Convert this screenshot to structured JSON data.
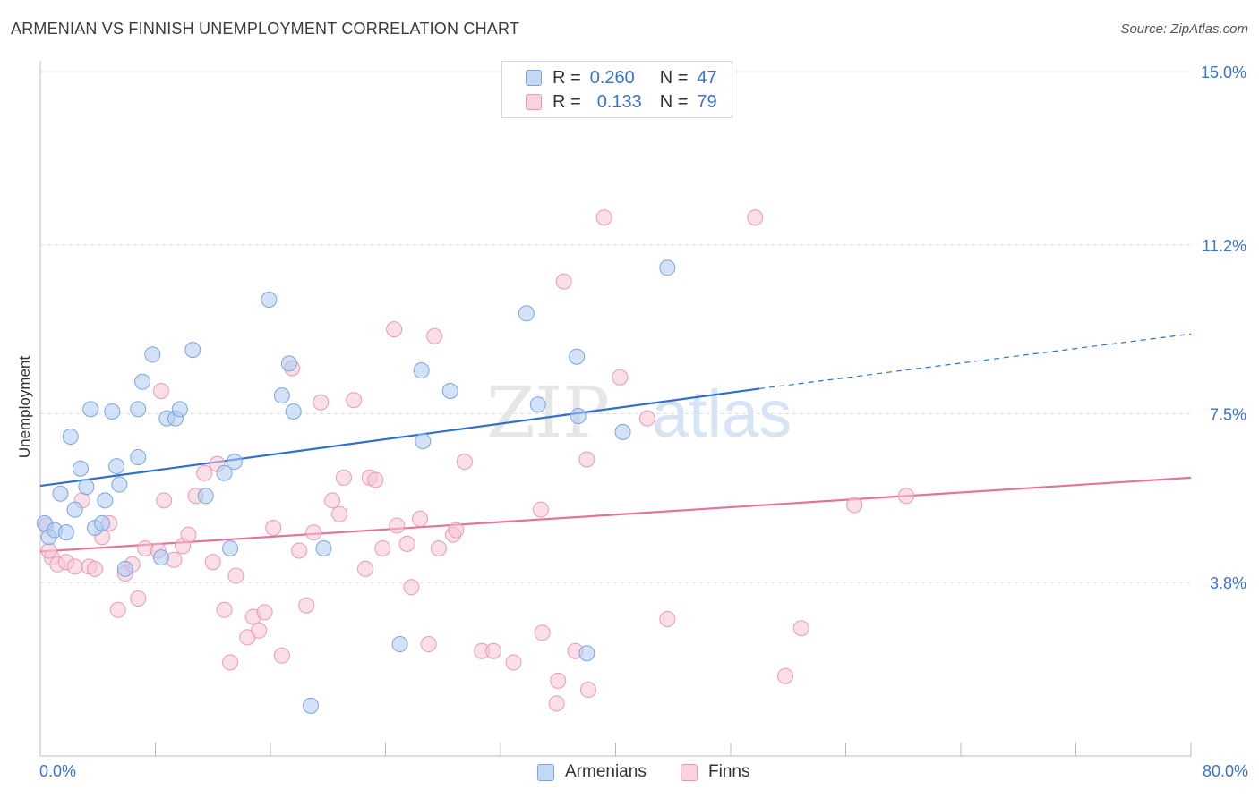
{
  "title": "ARMENIAN VS FINNISH UNEMPLOYMENT CORRELATION CHART",
  "source": "Source: ZipAtlas.com",
  "watermark": {
    "zip": "ZIP",
    "atlas": "atlas"
  },
  "legend_top": {
    "rows": [
      {
        "r_label": "R =",
        "r_value": "0.260",
        "n_label": "N =",
        "n_value": "47"
      },
      {
        "r_label": "R =",
        "r_value": "0.133",
        "n_label": "N =",
        "n_value": "79"
      }
    ]
  },
  "x_axis": {
    "min_label": "0.0%",
    "max_label": "80.0%"
  },
  "chart_data": {
    "type": "scatter",
    "title": "ARMENIAN VS FINNISH UNEMPLOYMENT CORRELATION CHART",
    "xlabel": "",
    "ylabel": "Unemployment",
    "xlim": [
      0,
      80
    ],
    "ylim": [
      0,
      15
    ],
    "x_tick_labels": [
      "0.0%",
      "80.0%"
    ],
    "y_ticks": [
      3.8,
      7.5,
      11.2,
      15.0
    ],
    "y_tick_labels": [
      "3.8%",
      "7.5%",
      "11.2%",
      "15.0%"
    ],
    "grid": true,
    "legend_position": "bottom",
    "colors": {
      "armenians_fill": "#aecbf2",
      "armenians_stroke": "#7aa6e0",
      "armenians_line": "#2f6fd0",
      "finns_fill": "#f7c5d5",
      "finns_stroke": "#ea9ab4",
      "finns_line": "#e5739a",
      "value_blue": "#3a73d0"
    },
    "series": [
      {
        "name": "Armenians",
        "r": 0.26,
        "n": 47,
        "trend": {
          "x0": 0,
          "y0": 5.92,
          "x1": 50,
          "y1": 8.05,
          "dashed_to_x": 80,
          "dashed_to_y": 9.25
        },
        "points": [
          [
            0.3,
            5.1
          ],
          [
            0.6,
            4.8
          ],
          [
            1.0,
            4.95
          ],
          [
            1.4,
            5.75
          ],
          [
            1.8,
            4.9
          ],
          [
            2.1,
            7.0
          ],
          [
            2.4,
            5.4
          ],
          [
            2.8,
            6.3
          ],
          [
            3.2,
            5.9
          ],
          [
            3.5,
            7.6
          ],
          [
            3.8,
            5.0
          ],
          [
            4.3,
            5.1
          ],
          [
            4.5,
            5.6
          ],
          [
            5.0,
            7.55
          ],
          [
            5.3,
            6.35
          ],
          [
            5.5,
            5.95
          ],
          [
            5.9,
            4.1
          ],
          [
            6.8,
            6.55
          ],
          [
            6.8,
            7.6
          ],
          [
            7.1,
            8.2
          ],
          [
            7.8,
            8.8
          ],
          [
            8.4,
            4.35
          ],
          [
            8.8,
            7.4
          ],
          [
            9.4,
            7.4
          ],
          [
            9.7,
            7.6
          ],
          [
            10.6,
            8.9
          ],
          [
            11.5,
            5.7
          ],
          [
            12.8,
            6.2
          ],
          [
            13.2,
            4.55
          ],
          [
            13.5,
            6.45
          ],
          [
            15.9,
            10.0
          ],
          [
            16.8,
            7.9
          ],
          [
            17.3,
            8.6
          ],
          [
            17.6,
            7.55
          ],
          [
            18.8,
            1.1
          ],
          [
            19.7,
            4.55
          ],
          [
            25.0,
            2.45
          ],
          [
            26.5,
            8.45
          ],
          [
            26.6,
            6.9
          ],
          [
            28.5,
            8.0
          ],
          [
            33.8,
            9.7
          ],
          [
            34.6,
            7.7
          ],
          [
            37.3,
            8.75
          ],
          [
            37.4,
            7.45
          ],
          [
            38.0,
            2.25
          ],
          [
            40.5,
            7.1
          ],
          [
            43.6,
            10.7
          ]
        ]
      },
      {
        "name": "Finns",
        "r": 0.133,
        "n": 79,
        "trend": {
          "x0": 0,
          "y0": 4.48,
          "x1": 80,
          "y1": 6.1
        },
        "points": [
          [
            0.4,
            5.05
          ],
          [
            0.8,
            4.35
          ],
          [
            1.2,
            4.2
          ],
          [
            1.8,
            4.25
          ],
          [
            2.4,
            4.15
          ],
          [
            2.9,
            5.6
          ],
          [
            3.4,
            4.15
          ],
          [
            3.8,
            4.1
          ],
          [
            4.3,
            4.8
          ],
          [
            4.8,
            5.1
          ],
          [
            5.4,
            3.2
          ],
          [
            5.9,
            4.0
          ],
          [
            6.4,
            4.2
          ],
          [
            6.8,
            3.45
          ],
          [
            7.3,
            4.55
          ],
          [
            8.2,
            4.5
          ],
          [
            8.4,
            8.0
          ],
          [
            8.6,
            5.6
          ],
          [
            9.3,
            4.3
          ],
          [
            9.9,
            4.6
          ],
          [
            10.3,
            4.85
          ],
          [
            10.8,
            5.7
          ],
          [
            11.4,
            6.2
          ],
          [
            12.0,
            4.25
          ],
          [
            12.3,
            6.4
          ],
          [
            12.8,
            3.2
          ],
          [
            13.2,
            2.05
          ],
          [
            13.6,
            3.95
          ],
          [
            14.4,
            2.6
          ],
          [
            14.8,
            3.05
          ],
          [
            15.2,
            2.75
          ],
          [
            15.6,
            3.15
          ],
          [
            16.2,
            5.0
          ],
          [
            16.8,
            2.2
          ],
          [
            17.5,
            8.5
          ],
          [
            18.0,
            4.5
          ],
          [
            18.5,
            3.3
          ],
          [
            19.0,
            4.9
          ],
          [
            19.5,
            7.75
          ],
          [
            20.3,
            5.6
          ],
          [
            20.8,
            5.3
          ],
          [
            21.1,
            6.1
          ],
          [
            21.8,
            7.8
          ],
          [
            22.6,
            4.1
          ],
          [
            22.9,
            6.1
          ],
          [
            23.3,
            6.05
          ],
          [
            23.8,
            4.55
          ],
          [
            24.6,
            9.35
          ],
          [
            24.8,
            5.05
          ],
          [
            25.5,
            4.65
          ],
          [
            25.8,
            3.7
          ],
          [
            26.4,
            5.2
          ],
          [
            27.0,
            2.45
          ],
          [
            27.4,
            9.2
          ],
          [
            27.7,
            4.55
          ],
          [
            28.7,
            4.85
          ],
          [
            28.9,
            4.95
          ],
          [
            29.5,
            6.45
          ],
          [
            30.7,
            2.3
          ],
          [
            31.5,
            2.3
          ],
          [
            32.9,
            2.05
          ],
          [
            34.8,
            5.4
          ],
          [
            34.9,
            2.7
          ],
          [
            35.9,
            1.15
          ],
          [
            36.0,
            1.65
          ],
          [
            36.4,
            10.4
          ],
          [
            37.2,
            2.3
          ],
          [
            38.0,
            6.5
          ],
          [
            38.1,
            1.45
          ],
          [
            39.2,
            11.8
          ],
          [
            40.3,
            8.3
          ],
          [
            42.2,
            7.4
          ],
          [
            43.6,
            3.0
          ],
          [
            49.7,
            11.8
          ],
          [
            51.8,
            1.75
          ],
          [
            52.9,
            2.8
          ],
          [
            56.6,
            5.5
          ],
          [
            60.2,
            5.7
          ],
          [
            0.6,
            4.5
          ]
        ]
      }
    ]
  },
  "legend_bottom": {
    "items": [
      "Armenians",
      "Finns"
    ]
  }
}
